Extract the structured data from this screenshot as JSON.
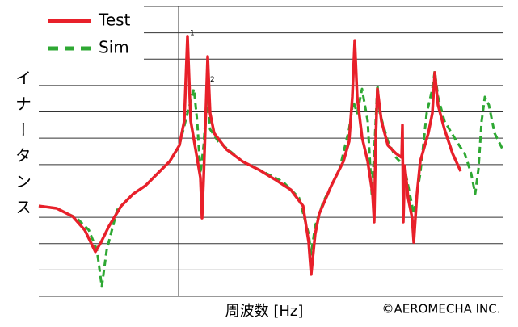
{
  "chart_data": {
    "type": "line",
    "y_label": "イナータンス",
    "x_label": "周波数 [Hz]",
    "copyright": "©AEROMECHA INC.",
    "xlim": [
      0,
      574
    ],
    "ylim": [
      0,
      11
    ],
    "xticks": [
      173
    ],
    "yticks": [
      0,
      1,
      2,
      3,
      4,
      5,
      6,
      7,
      8,
      9,
      10,
      11
    ],
    "grid": true,
    "legend": "upper left",
    "annotations": [
      {
        "text": "1",
        "x": 184,
        "y": 9.87
      },
      {
        "text": "2",
        "x": 209,
        "y": 8.1
      }
    ],
    "series": [
      {
        "name": "Test",
        "color": "#e8202a",
        "style": "solid",
        "x": [
          0,
          22,
          42,
          57,
          70,
          77,
          87,
          102,
          117,
          132,
          147,
          162,
          174,
          180,
          184,
          188,
          194,
          200,
          202,
          204,
          206,
          209,
          212,
          217,
          232,
          252,
          272,
          292,
          312,
          327,
          334,
          337,
          342,
          347,
          362,
          377,
          384,
          388,
          391,
          394,
          400,
          407,
          413,
          415,
          417,
          419,
          424,
          432,
          442,
          449,
          450,
          451,
          453,
          457,
          462,
          464,
          468,
          472,
          482,
          487,
          490,
          494,
          502,
          512,
          522
        ],
        "values": [
          3.43,
          3.34,
          3.03,
          2.51,
          1.69,
          2.05,
          2.67,
          3.43,
          3.89,
          4.2,
          4.66,
          5.12,
          5.73,
          6.65,
          9.87,
          6.65,
          5.58,
          4.5,
          2.97,
          4.5,
          6.34,
          9.1,
          6.95,
          6.19,
          5.58,
          5.12,
          4.81,
          4.44,
          4.04,
          3.43,
          2.05,
          0.83,
          2.36,
          3.13,
          4.2,
          5.12,
          5.88,
          7.57,
          9.71,
          7.57,
          6.04,
          5.12,
          3.89,
          2.82,
          6.04,
          7.87,
          6.65,
          5.73,
          5.42,
          5.27,
          6.5,
          2.82,
          4.96,
          3.74,
          2.97,
          2.05,
          3.89,
          5.12,
          6.19,
          6.95,
          8.49,
          7.26,
          6.34,
          5.42,
          4.75
        ]
      },
      {
        "name": "Sim",
        "color": "#2ea833",
        "style": "dashed",
        "x": [
          0,
          22,
          47,
          62,
          72,
          78,
          84,
          97,
          117,
          132,
          147,
          162,
          174,
          184,
          192,
          196,
          200,
          204,
          208,
          212,
          222,
          252,
          282,
          302,
          322,
          334,
          337,
          342,
          352,
          372,
          384,
          389,
          394,
          400,
          407,
          412,
          415,
          419,
          422,
          432,
          442,
          452,
          457,
          464,
          472,
          480,
          487,
          490,
          494,
          502,
          517,
          527,
          535,
          540,
          544,
          548,
          552,
          557,
          564,
          574
        ],
        "values": [
          3.43,
          3.34,
          2.97,
          2.51,
          1.75,
          0.37,
          1.75,
          3.28,
          3.89,
          4.2,
          4.66,
          5.12,
          5.73,
          6.95,
          7.87,
          6.65,
          4.66,
          5.73,
          7.57,
          6.34,
          5.88,
          5.12,
          4.66,
          4.35,
          3.74,
          2.36,
          1.59,
          2.67,
          3.58,
          4.81,
          6.34,
          7.41,
          6.95,
          7.87,
          6.65,
          3.89,
          5.42,
          8.03,
          6.95,
          5.88,
          5.27,
          4.96,
          4.2,
          3.13,
          4.66,
          6.95,
          7.87,
          8.55,
          7.57,
          6.65,
          5.88,
          5.42,
          4.66,
          3.89,
          4.81,
          6.65,
          7.57,
          7.26,
          6.19,
          5.58
        ]
      }
    ]
  }
}
